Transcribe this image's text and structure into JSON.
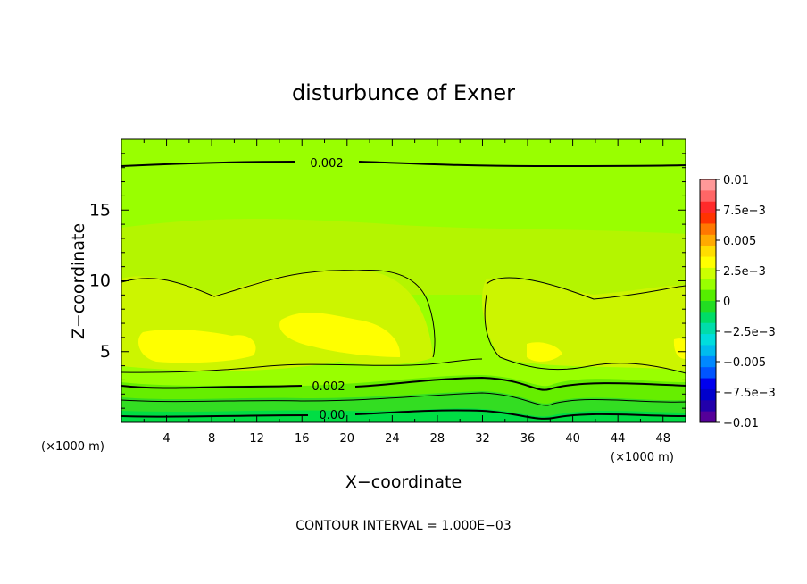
{
  "chart_data": {
    "type": "heatmap",
    "title": "disturbunce of Exner",
    "xlabel": "X−coordinate",
    "ylabel": "Z−coordinate",
    "x_unit": "(×1000 m)",
    "z_unit": "(×1000 m)",
    "xlim": [
      0,
      50
    ],
    "ylim": [
      0,
      20
    ],
    "x_ticks": [
      "4",
      "8",
      "12",
      "16",
      "20",
      "24",
      "28",
      "32",
      "36",
      "40",
      "44",
      "48"
    ],
    "y_ticks": [
      "5",
      "10",
      "15"
    ],
    "contour_labels": [
      {
        "text": "0.002",
        "x": 18,
        "z": 18.2
      },
      {
        "text": "0.002",
        "x": 18,
        "z": 2.5
      },
      {
        "text": "0.00",
        "x": 18,
        "z": 0.5
      }
    ],
    "colorbar": {
      "min": -0.01,
      "max": 0.01,
      "labels": [
        "0.01",
        "7.5e−3",
        "0.005",
        "2.5e−3",
        "0",
        "−2.5e−3",
        "−0.005",
        "−7.5e−3",
        "−0.01"
      ],
      "colors": [
        "#ff9999",
        "#ff6666",
        "#ff2a2a",
        "#ff3300",
        "#ff7700",
        "#ffaa00",
        "#ffdd00",
        "#ffff00",
        "#ccff00",
        "#99ff00",
        "#55ee00",
        "#22dd22",
        "#00dd66",
        "#00ddaa",
        "#00dddd",
        "#00bbee",
        "#0088ff",
        "#0055ff",
        "#0000ee",
        "#0000cc",
        "#2200aa",
        "#550099"
      ]
    },
    "contour_interval_text": "CONTOUR INTERVAL = 1.000E−03"
  }
}
